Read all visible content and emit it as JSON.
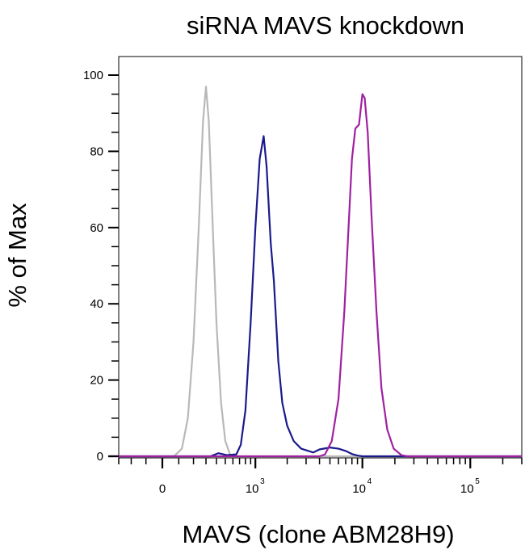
{
  "chart_data": {
    "type": "line",
    "title": "siRNA MAVS knockdown",
    "xlabel": "MAVS (clone ABM28H9)",
    "ylabel": "% of Max",
    "ylim": [
      0,
      100
    ],
    "yticks": [
      0,
      20,
      40,
      60,
      80,
      100
    ],
    "ytick_labels": [
      "0",
      "20",
      "40",
      "60",
      "80",
      "100"
    ],
    "xscale": "biexponential",
    "xtick_labels": [
      {
        "base": "0",
        "exp": ""
      },
      {
        "base": "10",
        "exp": "3"
      },
      {
        "base": "10",
        "exp": "4"
      },
      {
        "base": "10",
        "exp": "5"
      }
    ],
    "xlim_display": [
      -300,
      300000
    ],
    "grid": false,
    "legend": "none",
    "series": [
      {
        "color": "#b8b8b8",
        "points": [
          [
            -400,
            0
          ],
          [
            70,
            0
          ],
          [
            120,
            2
          ],
          [
            160,
            10
          ],
          [
            200,
            30
          ],
          [
            240,
            60
          ],
          [
            275,
            88
          ],
          [
            300,
            97
          ],
          [
            325,
            88
          ],
          [
            360,
            62
          ],
          [
            400,
            35
          ],
          [
            450,
            14
          ],
          [
            500,
            4
          ],
          [
            560,
            0.5
          ],
          [
            650,
            0
          ],
          [
            300000,
            0
          ]
        ]
      },
      {
        "color": "#1a1a8c",
        "points": [
          [
            -400,
            0
          ],
          [
            340,
            0
          ],
          [
            420,
            0.8
          ],
          [
            520,
            0.3
          ],
          [
            650,
            0.5
          ],
          [
            720,
            3
          ],
          [
            800,
            12
          ],
          [
            900,
            35
          ],
          [
            1000,
            60
          ],
          [
            1100,
            78
          ],
          [
            1200,
            84
          ],
          [
            1280,
            76
          ],
          [
            1400,
            56
          ],
          [
            1500,
            46
          ],
          [
            1650,
            25
          ],
          [
            1800,
            14
          ],
          [
            2000,
            8
          ],
          [
            2300,
            4
          ],
          [
            2700,
            2
          ],
          [
            3500,
            1
          ],
          [
            4000,
            1.8
          ],
          [
            5000,
            2.3
          ],
          [
            6000,
            2.0
          ],
          [
            7000,
            1.4
          ],
          [
            8000,
            0.6
          ],
          [
            9000,
            0.2
          ],
          [
            10000,
            0
          ],
          [
            300000,
            0
          ]
        ]
      },
      {
        "color": "#a020a0",
        "points": [
          [
            -400,
            0
          ],
          [
            4000,
            0
          ],
          [
            4500,
            0.5
          ],
          [
            5200,
            4
          ],
          [
            6000,
            15
          ],
          [
            6800,
            38
          ],
          [
            7500,
            62
          ],
          [
            8000,
            78
          ],
          [
            8600,
            86
          ],
          [
            9300,
            87
          ],
          [
            10000,
            95
          ],
          [
            10500,
            94
          ],
          [
            11200,
            85
          ],
          [
            12200,
            62
          ],
          [
            13500,
            38
          ],
          [
            15000,
            18
          ],
          [
            17000,
            7
          ],
          [
            19500,
            2
          ],
          [
            23000,
            0.3
          ],
          [
            26000,
            0
          ],
          [
            300000,
            0
          ]
        ]
      }
    ]
  }
}
